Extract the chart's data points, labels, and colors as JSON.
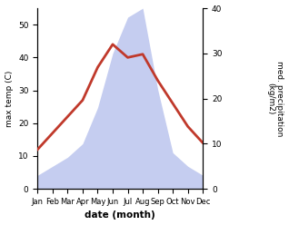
{
  "months": [
    "Jan",
    "Feb",
    "Mar",
    "Apr",
    "May",
    "Jun",
    "Jul",
    "Aug",
    "Sep",
    "Oct",
    "Nov",
    "Dec"
  ],
  "temperature": [
    12,
    17,
    22,
    27,
    37,
    44,
    40,
    41,
    33,
    26,
    19,
    14
  ],
  "precipitation": [
    3,
    5,
    7,
    10,
    18,
    30,
    38,
    40,
    22,
    8,
    5,
    3
  ],
  "temp_color": "#c0392b",
  "precip_color": "#c5cdf0",
  "title": "",
  "xlabel": "date (month)",
  "ylabel_left": "max temp (C)",
  "ylabel_right": "med. precipitation\n(kg/m2)",
  "ylim_left": [
    0,
    55
  ],
  "ylim_right": [
    0,
    40
  ],
  "yticks_left": [
    0,
    10,
    20,
    30,
    40,
    50
  ],
  "yticks_right": [
    0,
    10,
    20,
    30,
    40
  ],
  "background_color": "#ffffff",
  "temp_linewidth": 2.0
}
